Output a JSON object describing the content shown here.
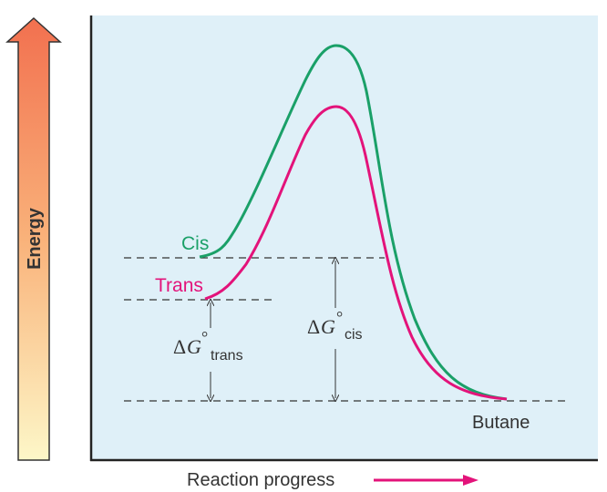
{
  "labels": {
    "energy_axis": "Energy",
    "x_axis": "Reaction progress",
    "cis": "Cis",
    "trans": "Trans",
    "product": "Butane",
    "delta_g_trans": {
      "delta": "Δ",
      "symbol": "G",
      "degree": "°",
      "subscript": "trans"
    },
    "delta_g_cis": {
      "delta": "Δ",
      "symbol": "G",
      "degree": "°",
      "subscript": "cis"
    }
  },
  "colors": {
    "panel_background": "#dff0f8",
    "axis_line": "#222222",
    "cis_curve": "#1aa068",
    "trans_curve": "#e3137a",
    "arrow_pink": "#e3137a",
    "energy_arrow_top": "#f2704f",
    "energy_arrow_bottom": "#fdf7c8",
    "dashed_line": "#333333",
    "text": "#333333"
  }
}
